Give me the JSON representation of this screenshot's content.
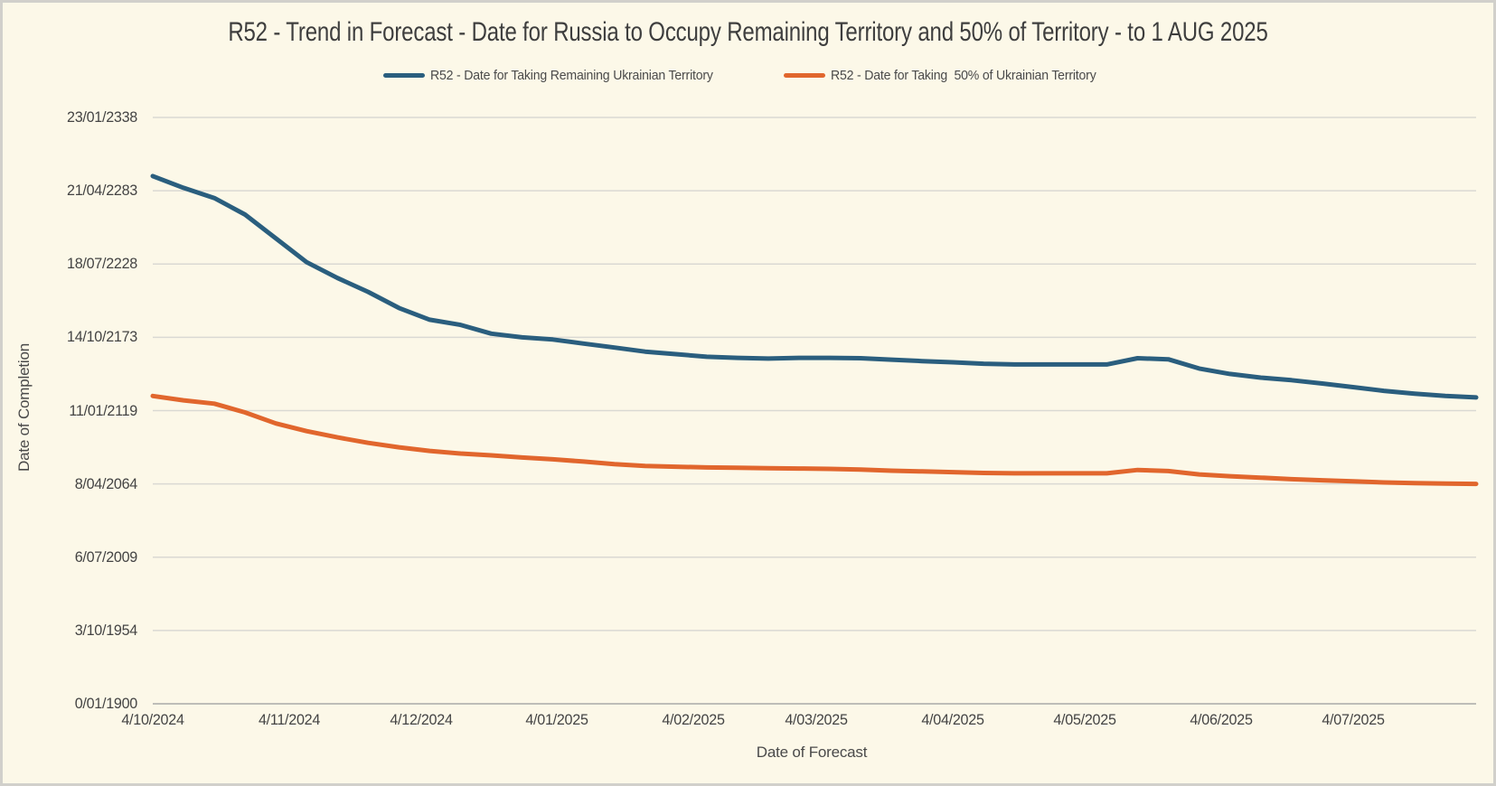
{
  "chart_data": {
    "type": "line",
    "title": "R52 - Trend in Forecast - Date for Russia to Occupy Remaining Territory and 50% of Territory - to 1 AUG 2025",
    "xlabel": "Date of Forecast",
    "ylabel": "Date of Completion",
    "grid": "horizontal",
    "legend_position": "top",
    "x_axis": {
      "unit": "days since 4/10/2024",
      "range": [
        0,
        301
      ],
      "tick_offsets": [
        0,
        31,
        61,
        92,
        123,
        151,
        182,
        212,
        243,
        273
      ],
      "tick_labels": [
        "4/10/2024",
        "4/11/2024",
        "4/12/2024",
        "4/01/2025",
        "4/02/2025",
        "4/03/2025",
        "4/04/2025",
        "4/05/2025",
        "4/06/2025",
        "4/07/2025"
      ]
    },
    "y_axis": {
      "unit": "days since 0/01/1900 (Excel date serial)",
      "range": [
        0,
        160000
      ],
      "tick_values": [
        0,
        20000,
        40000,
        60000,
        80000,
        100000,
        120000,
        140000,
        160000
      ],
      "tick_labels": [
        "0/01/1900",
        "3/10/1954",
        "6/07/2009",
        "8/04/2064",
        "11/01/2119",
        "14/10/2173",
        "18/07/2228",
        "21/04/2283",
        "23/01/2338"
      ]
    },
    "series": [
      {
        "name": "R52 - Date for Taking Remaining Ukrainian Territory",
        "color": "#2A5E7E",
        "day_offsets": [
          0,
          7,
          14,
          21,
          28,
          35,
          42,
          49,
          56,
          63,
          70,
          77,
          84,
          91,
          98,
          105,
          112,
          119,
          126,
          133,
          140,
          147,
          154,
          161,
          168,
          175,
          182,
          189,
          196,
          203,
          210,
          217,
          224,
          231,
          238,
          245,
          252,
          259,
          266,
          273,
          280,
          287,
          294,
          301
        ],
        "values": [
          144000,
          140800,
          138000,
          133500,
          127000,
          120500,
          116200,
          112400,
          108000,
          104800,
          103400,
          101000,
          100000,
          99400,
          98300,
          97200,
          96100,
          95400,
          94700,
          94400,
          94200,
          94400,
          94400,
          94300,
          93900,
          93500,
          93200,
          92800,
          92600,
          92600,
          92600,
          92600,
          94300,
          94000,
          91500,
          90000,
          89000,
          88300,
          87400,
          86400,
          85400,
          84600,
          84000,
          83600
        ]
      },
      {
        "name": "R52 - Date for Taking  50% of Ukrainian Territory",
        "color": "#E1662D",
        "day_offsets": [
          0,
          7,
          14,
          21,
          28,
          35,
          42,
          49,
          56,
          63,
          70,
          77,
          84,
          91,
          98,
          105,
          112,
          119,
          126,
          133,
          140,
          147,
          154,
          161,
          168,
          175,
          182,
          189,
          196,
          203,
          210,
          217,
          224,
          231,
          238,
          245,
          252,
          259,
          266,
          273,
          280,
          287,
          294,
          301
        ],
        "values": [
          84000,
          82800,
          81900,
          79500,
          76500,
          74400,
          72700,
          71200,
          70000,
          69000,
          68300,
          67800,
          67200,
          66700,
          66100,
          65400,
          64900,
          64700,
          64500,
          64400,
          64300,
          64200,
          64100,
          63900,
          63600,
          63400,
          63200,
          63000,
          62900,
          62900,
          62900,
          62900,
          63800,
          63500,
          62600,
          62100,
          61700,
          61300,
          61000,
          60700,
          60400,
          60200,
          60100,
          60000
        ]
      }
    ],
    "colors": {
      "background": "#FCF8E8",
      "border": "#D1D0CB",
      "gridline": "#DAD9D3",
      "axis_line": "#BEBDB8",
      "text": "#3E3E3E",
      "series_remaining": "#2A5E7E",
      "series_fifty_percent": "#E1662D"
    }
  }
}
